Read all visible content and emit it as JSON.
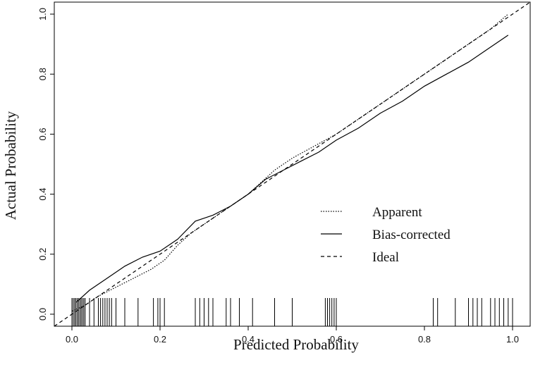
{
  "chart_data": {
    "type": "line",
    "xlabel": "Predicted Probability",
    "ylabel": "Actual Probability",
    "xlim": [
      -0.04,
      1.04
    ],
    "ylim": [
      -0.04,
      1.04
    ],
    "xticks": [
      "0.0",
      "0.2",
      "0.4",
      "0.6",
      "0.8",
      "1.0"
    ],
    "yticks": [
      "0.0",
      "0.2",
      "0.4",
      "0.6",
      "0.8",
      "1.0"
    ],
    "grid": false,
    "legend_position": "lower-right",
    "series": [
      {
        "name": "Apparent",
        "style": "dotted",
        "x": [
          0.0,
          0.03,
          0.06,
          0.1,
          0.14,
          0.18,
          0.21,
          0.24,
          0.27,
          0.3,
          0.33,
          0.36,
          0.4,
          0.43,
          0.46,
          0.5,
          0.55,
          0.6,
          0.65,
          0.7,
          0.75,
          0.8,
          0.85,
          0.9,
          0.95,
          0.99
        ],
        "y": [
          0.01,
          0.03,
          0.06,
          0.09,
          0.12,
          0.15,
          0.18,
          0.23,
          0.27,
          0.3,
          0.33,
          0.36,
          0.4,
          0.44,
          0.48,
          0.52,
          0.56,
          0.6,
          0.65,
          0.7,
          0.75,
          0.8,
          0.85,
          0.9,
          0.95,
          1.0
        ]
      },
      {
        "name": "Bias-corrected",
        "style": "solid",
        "x": [
          0.01,
          0.04,
          0.08,
          0.12,
          0.16,
          0.2,
          0.24,
          0.28,
          0.3,
          0.32,
          0.36,
          0.4,
          0.44,
          0.48,
          0.52,
          0.56,
          0.6,
          0.65,
          0.7,
          0.75,
          0.8,
          0.85,
          0.9,
          0.95,
          0.99
        ],
        "y": [
          0.04,
          0.08,
          0.12,
          0.16,
          0.19,
          0.21,
          0.25,
          0.31,
          0.32,
          0.33,
          0.36,
          0.4,
          0.45,
          0.48,
          0.51,
          0.54,
          0.58,
          0.62,
          0.67,
          0.71,
          0.76,
          0.8,
          0.84,
          0.89,
          0.93
        ]
      },
      {
        "name": "Ideal",
        "style": "dashed",
        "x": [
          -0.04,
          1.04
        ],
        "y": [
          -0.04,
          1.04
        ]
      }
    ],
    "rug": [
      0.0,
      0.003,
      0.006,
      0.009,
      0.012,
      0.015,
      0.018,
      0.021,
      0.024,
      0.027,
      0.03,
      0.04,
      0.05,
      0.06,
      0.065,
      0.07,
      0.075,
      0.08,
      0.085,
      0.09,
      0.1,
      0.12,
      0.15,
      0.185,
      0.195,
      0.2,
      0.21,
      0.28,
      0.29,
      0.3,
      0.31,
      0.32,
      0.35,
      0.36,
      0.38,
      0.41,
      0.46,
      0.5,
      0.575,
      0.58,
      0.585,
      0.59,
      0.595,
      0.6,
      0.82,
      0.83,
      0.87,
      0.9,
      0.91,
      0.92,
      0.93,
      0.95,
      0.96,
      0.97,
      0.98,
      0.99,
      1.0
    ]
  }
}
